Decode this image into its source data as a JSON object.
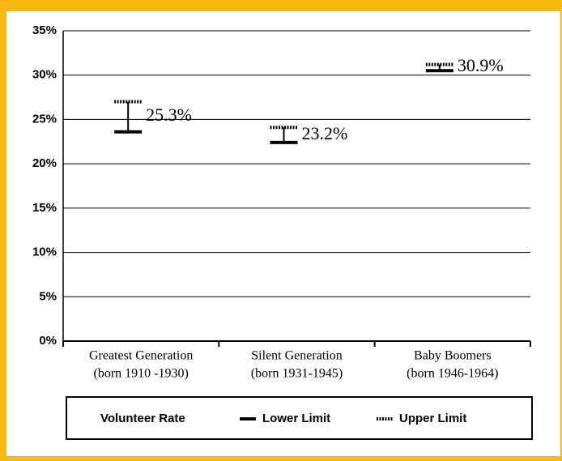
{
  "chart_data": {
    "type": "range",
    "categories": [
      [
        "Greatest Generation",
        "(born 1910 -1930)"
      ],
      [
        "Silent Generation",
        "(born 1931-1945)"
      ],
      [
        "Baby Boomers",
        "(born 1946-1964)"
      ]
    ],
    "series": [
      {
        "name": "Volunteer Rate",
        "values": [
          25.3,
          23.2,
          30.9
        ],
        "value_labels": [
          "25.3%",
          "23.2%",
          "30.9%"
        ]
      },
      {
        "name": "Lower Limit",
        "color": "#000000",
        "line_style": "solid",
        "values": [
          23.6,
          22.4,
          30.5
        ]
      },
      {
        "name": "Upper Limit",
        "color": "#000000",
        "line_style": "dotted",
        "values": [
          27.0,
          24.1,
          31.2
        ]
      }
    ],
    "ylim": [
      0,
      35
    ],
    "yticks": [
      {
        "value": 0,
        "label": "0%"
      },
      {
        "value": 5,
        "label": "5%"
      },
      {
        "value": 10,
        "label": "10%"
      },
      {
        "value": 15,
        "label": "15%"
      },
      {
        "value": 20,
        "label": "20%"
      },
      {
        "value": 25,
        "label": "25%"
      },
      {
        "value": 30,
        "label": "30%"
      },
      {
        "value": 35,
        "label": "35%"
      }
    ],
    "grid": true
  }
}
